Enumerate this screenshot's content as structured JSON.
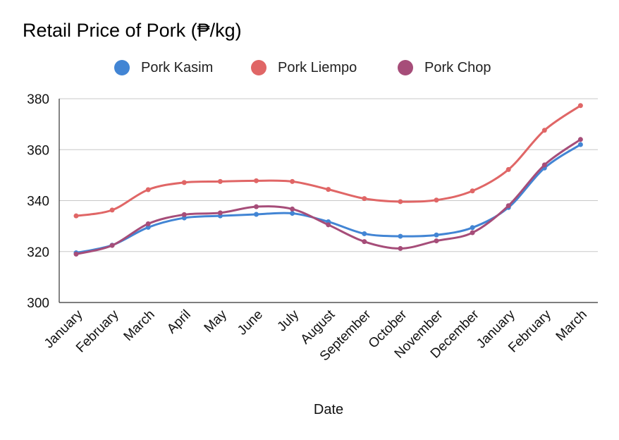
{
  "chart_data": {
    "type": "line",
    "title": "Retail Price of Pork (₱/kg)",
    "xlabel": "Date",
    "ylabel": "",
    "ylim": [
      300,
      380
    ],
    "yticks": [
      300,
      320,
      340,
      360,
      380
    ],
    "grid": true,
    "legend_position": "top",
    "categories": [
      "January",
      "February",
      "March",
      "April",
      "May",
      "June",
      "July",
      "August",
      "September",
      "October",
      "November",
      "December",
      "January",
      "February",
      "March"
    ],
    "series": [
      {
        "name": "Pork Kasim",
        "color": "#4285d4",
        "values": [
          319.5,
          322.5,
          329.5,
          333.2,
          334.0,
          334.6,
          335.0,
          331.7,
          327.0,
          326.0,
          326.5,
          329.4,
          337.3,
          352.8,
          362.0
        ]
      },
      {
        "name": "Pork Liempo",
        "color": "#e06666",
        "values": [
          334.0,
          336.3,
          344.3,
          347.1,
          347.5,
          347.8,
          347.5,
          344.4,
          340.8,
          339.6,
          340.2,
          343.8,
          352.2,
          367.6,
          377.3
        ]
      },
      {
        "name": "Pork Chop",
        "color": "#a64d79",
        "values": [
          319.0,
          322.4,
          330.9,
          334.5,
          335.2,
          337.6,
          336.7,
          330.5,
          323.9,
          321.2,
          324.2,
          327.4,
          338.0,
          354.0,
          364.0
        ]
      }
    ]
  }
}
